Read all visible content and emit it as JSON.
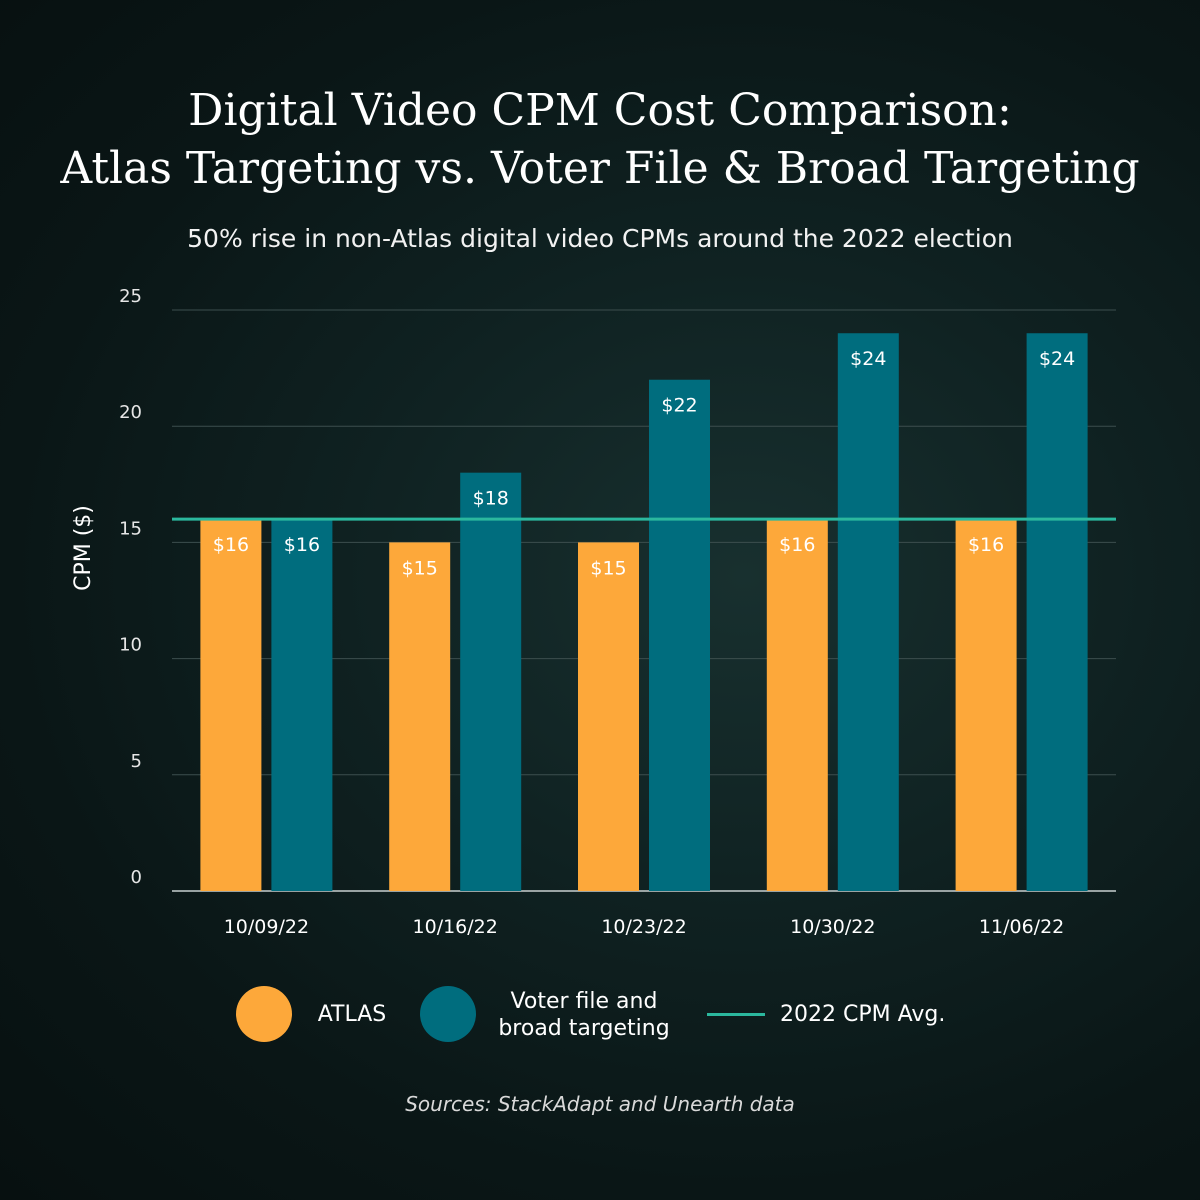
{
  "title_line1": "Digital Video CPM Cost Comparison:",
  "title_line2": "Atlas Targeting vs. Voter File & Broad Targeting",
  "subtitle": "50% rise in non-Atlas digital video CPMs around the 2022 election",
  "source": "Sources: StackAdapt and Unearth data",
  "legend": {
    "atlas": "ATLAS",
    "voter_line1": "Voter file and",
    "voter_line2": "broad targeting",
    "avg": "2022 CPM Avg."
  },
  "colors": {
    "atlas": "#FDA83A",
    "voter": "#006D7E",
    "avg": "#2BB89E",
    "grid": "#3c4e4e",
    "axis": "#c8d0d0"
  },
  "chart_data": {
    "type": "bar",
    "categories": [
      "10/09/22",
      "10/16/22",
      "10/23/22",
      "10/30/22",
      "11/06/22"
    ],
    "series": [
      {
        "name": "ATLAS",
        "values": [
          16,
          15,
          15,
          16,
          16
        ],
        "labels": [
          "$16",
          "$15",
          "$15",
          "$16",
          "$16"
        ]
      },
      {
        "name": "Voter file and broad targeting",
        "values": [
          16,
          18,
          22,
          24,
          24
        ],
        "labels": [
          "$16",
          "$18",
          "$22",
          "$24",
          "$24"
        ]
      }
    ],
    "reference_line": {
      "name": "2022 CPM Avg.",
      "value": 16
    },
    "ylabel": "CPM ($)",
    "xlabel": "",
    "ylim": [
      0,
      25
    ],
    "yticks": [
      0,
      5,
      10,
      15,
      20,
      25
    ],
    "grid": true,
    "legend_position": "bottom"
  }
}
